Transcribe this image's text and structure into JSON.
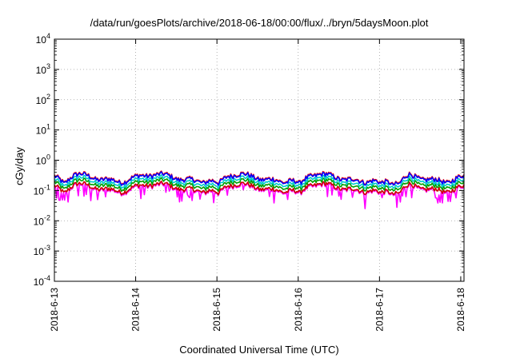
{
  "chart_data": {
    "type": "line",
    "title": "/data/run/goesPlots/archive/2018-06-18/00:00/flux/../bryn/5daysMoon.plot",
    "xlabel": "Coordinated Universal Time (UTC)",
    "ylabel": "cGy/day",
    "yscale": "log",
    "ylim": [
      0.0001,
      10000
    ],
    "xlim": [
      0,
      5.04
    ],
    "grid": true,
    "y_ticks": [
      {
        "base": "10",
        "exp": "-4"
      },
      {
        "base": "10",
        "exp": "-3"
      },
      {
        "base": "10",
        "exp": "-2"
      },
      {
        "base": "10",
        "exp": "-1"
      },
      {
        "base": "10",
        "exp": "0"
      },
      {
        "base": "10",
        "exp": "1"
      },
      {
        "base": "10",
        "exp": "2"
      },
      {
        "base": "10",
        "exp": "3"
      },
      {
        "base": "10",
        "exp": "4"
      }
    ],
    "x_ticks": [
      "2018-6-13",
      "2018-6-14",
      "2018-6-15",
      "2018-6-16",
      "2018-6-17",
      "2018-6-18"
    ],
    "series": [
      {
        "color": "#ff00ff",
        "base": 0.12,
        "dips": true
      },
      {
        "color": "#cc0000",
        "base": 0.13,
        "dips": false
      },
      {
        "color": "#00a000",
        "base": 0.17,
        "dips": false
      },
      {
        "color": "#00cccc",
        "base": 0.21,
        "dips": false
      },
      {
        "color": "#ff0000",
        "base": 0.28,
        "dips": false
      },
      {
        "color": "#0000ff",
        "base": 0.265,
        "dips": false
      }
    ]
  }
}
